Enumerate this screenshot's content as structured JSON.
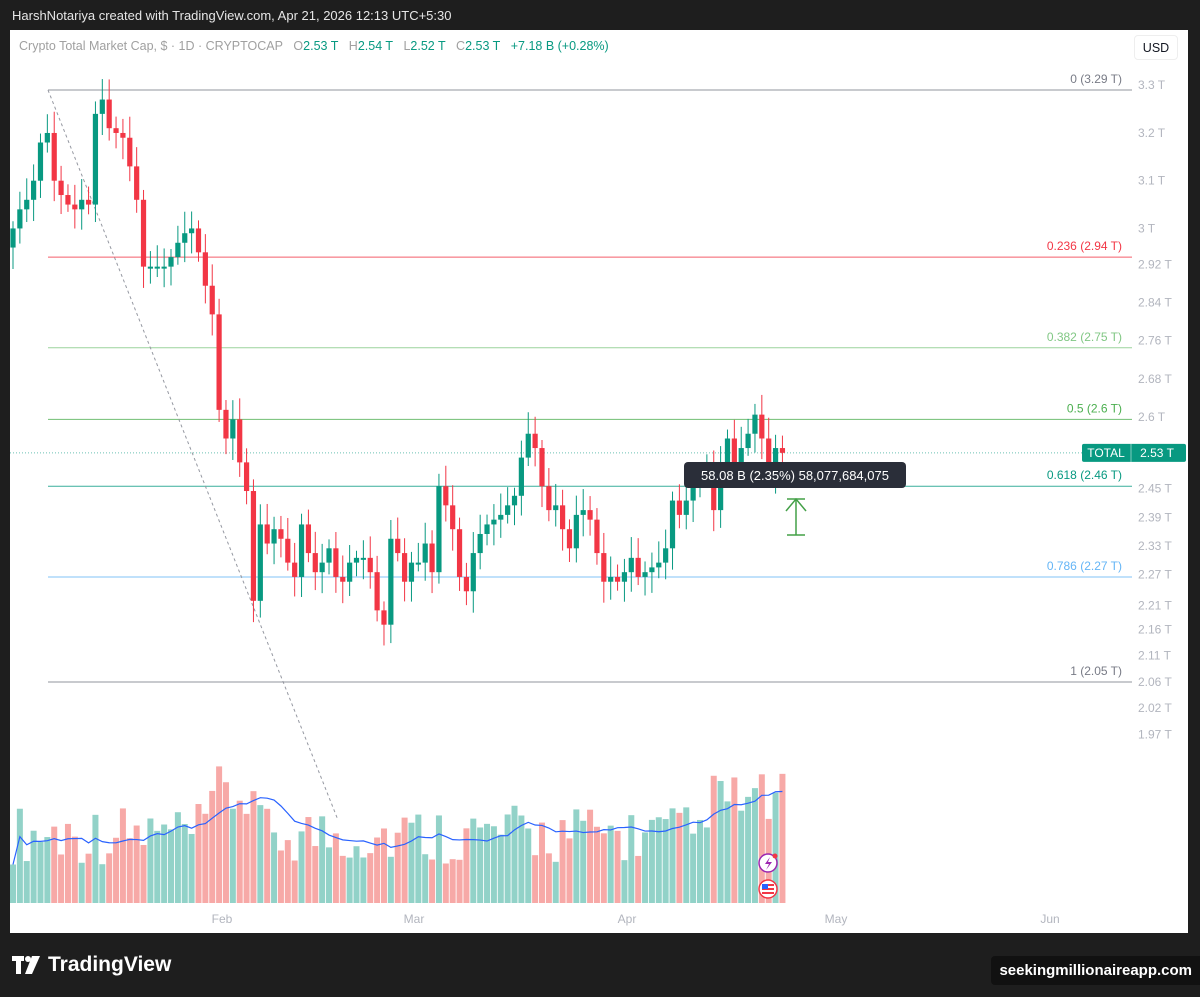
{
  "credit": "HarshNotariya created with TradingView.com, Apr 21, 2026 12:13 UTC+5:30",
  "legend": {
    "title": "Crypto Total Market Cap, $ · 1D · CRYPTOCAP",
    "o_label": "O",
    "o": "2.53 T",
    "h_label": "H",
    "h": "2.54 T",
    "l_label": "L",
    "l": "2.52 T",
    "c_label": "C",
    "c": "2.53 T",
    "change": "+7.18 B (+0.28%)"
  },
  "currency_button": "USD",
  "price_badge": {
    "symbol": "TOTAL",
    "value": "2.53 T"
  },
  "tooltip": "58.08 B (2.35%) 58,077,684,075",
  "footer": {
    "brand": "TradingView",
    "site": "seekingmillionaireapp.com"
  },
  "colors": {
    "up": "#089981",
    "down": "#f23645",
    "vol_up": "#92d2c8",
    "vol_down": "#f7a9a7",
    "ma": "#2962ff"
  },
  "chart_data": {
    "type": "candlestick",
    "title": "Crypto Total Market Cap, $ · 1D · CRYPTOCAP",
    "xlabel": "",
    "ylabel": "USD",
    "x_ticks": [
      "Feb",
      "Mar",
      "Apr",
      "May",
      "Jun"
    ],
    "y_ticks": [
      "3.3 T",
      "3.2 T",
      "3.1 T",
      "3 T",
      "2.92 T",
      "2.84 T",
      "2.76 T",
      "2.68 T",
      "2.6 T",
      "2.45 T",
      "2.39 T",
      "2.33 T",
      "2.27 T",
      "2.21 T",
      "2.16 T",
      "2.11 T",
      "2.06 T",
      "2.02 T",
      "1.97 T"
    ],
    "ylim": [
      1.95,
      3.33
    ],
    "fib_levels": [
      {
        "ratio": "0",
        "label": "0 (3.29 T)",
        "price": 3.29,
        "color": "#787b86"
      },
      {
        "ratio": "0.236",
        "label": "0.236 (2.94 T)",
        "price": 2.94,
        "color": "#f23645"
      },
      {
        "ratio": "0.382",
        "label": "0.382 (2.75 T)",
        "price": 2.75,
        "color": "#81c784"
      },
      {
        "ratio": "0.5",
        "label": "0.5 (2.6 T)",
        "price": 2.6,
        "color": "#4caf50"
      },
      {
        "ratio": "0.618",
        "label": "0.618 (2.46 T)",
        "price": 2.46,
        "color": "#089981"
      },
      {
        "ratio": "0.786",
        "label": "0.786 (2.27 T)",
        "price": 2.27,
        "color": "#64b5f6"
      },
      {
        "ratio": "1",
        "label": "1 (2.05 T)",
        "price": 2.05,
        "color": "#787b86"
      }
    ],
    "last_close": 2.53,
    "candles_close": [
      3.0,
      3.04,
      3.06,
      3.1,
      3.18,
      3.2,
      3.1,
      3.07,
      3.05,
      3.04,
      3.06,
      3.05,
      3.24,
      3.27,
      3.21,
      3.2,
      3.19,
      3.13,
      3.06,
      2.92,
      2.92,
      2.92,
      2.92,
      2.94,
      2.97,
      2.99,
      3.0,
      2.95,
      2.88,
      2.82,
      2.62,
      2.56,
      2.6,
      2.51,
      2.45,
      2.22,
      2.38,
      2.34,
      2.37,
      2.35,
      2.3,
      2.27,
      2.38,
      2.32,
      2.28,
      2.3,
      2.33,
      2.27,
      2.26,
      2.3,
      2.31,
      2.31,
      2.28,
      2.2,
      2.17,
      2.35,
      2.32,
      2.26,
      2.3,
      2.3,
      2.34,
      2.28,
      2.46,
      2.42,
      2.37,
      2.27,
      2.24,
      2.32,
      2.36,
      2.38,
      2.39,
      2.4,
      2.42,
      2.44,
      2.52,
      2.57,
      2.54,
      2.46,
      2.41,
      2.42,
      2.37,
      2.33,
      2.4,
      2.41,
      2.39,
      2.32,
      2.26,
      2.27,
      2.26,
      2.28,
      2.31,
      2.27,
      2.28,
      2.29,
      2.3,
      2.33,
      2.43,
      2.4,
      2.43,
      2.47,
      2.49,
      2.49,
      2.41,
      2.51,
      2.56,
      2.5,
      2.54,
      2.57,
      2.61,
      2.56,
      2.48,
      2.54,
      2.53
    ],
    "volume_ma_note": "blue moving average line over volume histogram"
  }
}
